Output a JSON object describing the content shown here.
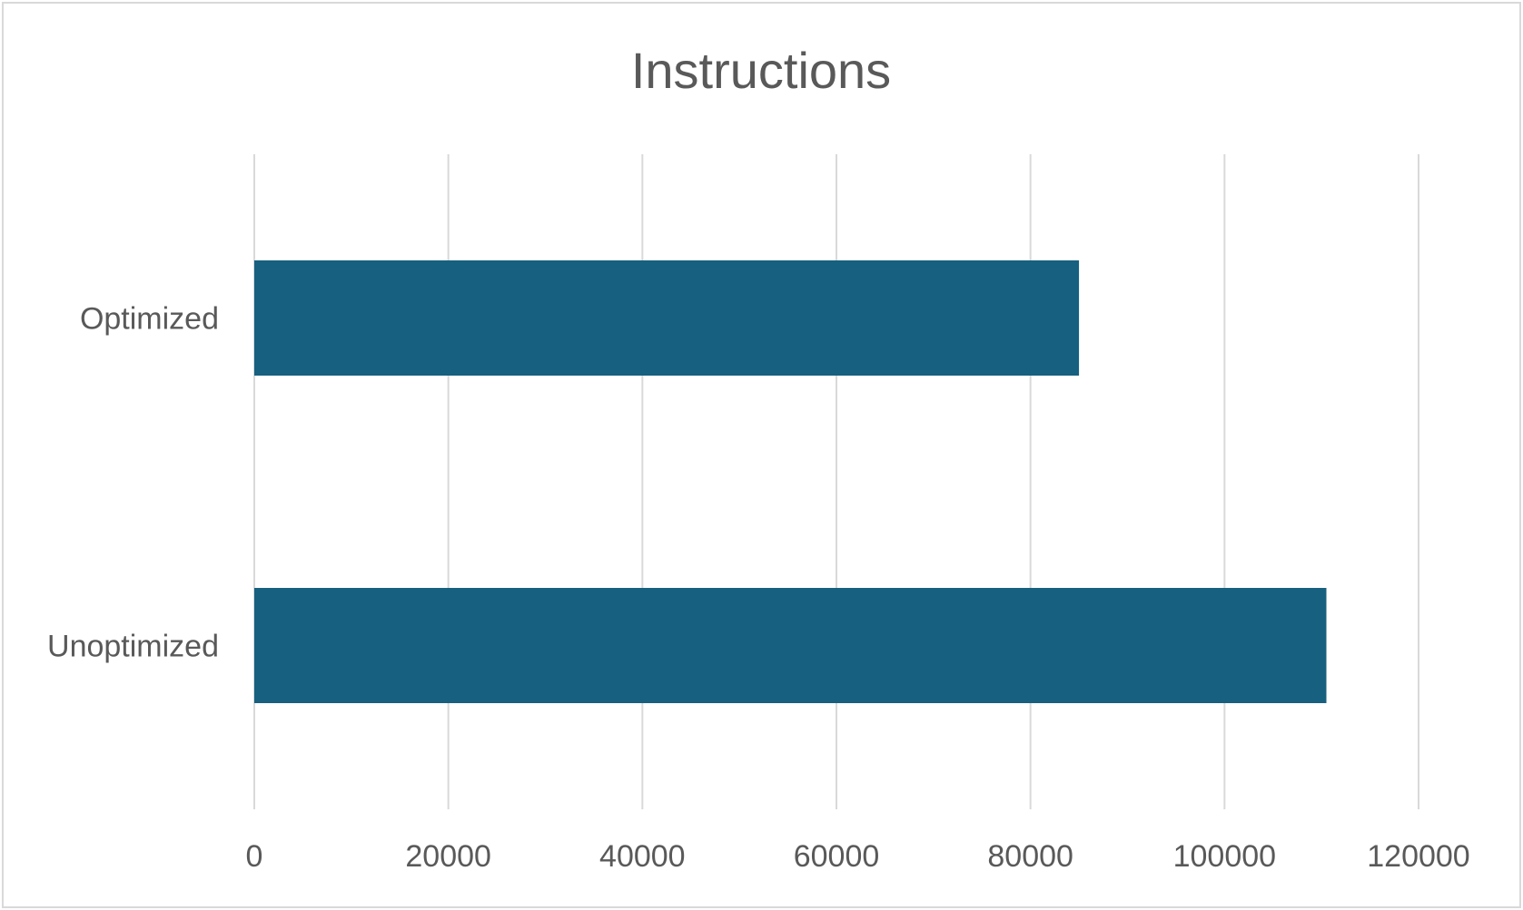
{
  "chart_data": {
    "type": "bar",
    "orientation": "horizontal",
    "title": "Instructions",
    "categories": [
      "Optimized",
      "Unoptimized"
    ],
    "values": [
      85000,
      110500
    ],
    "xlim": [
      0,
      120000
    ],
    "xticks": [
      "0",
      "20000",
      "40000",
      "60000",
      "80000",
      "100000",
      "120000"
    ],
    "grid": "vertical",
    "legend": "none",
    "bar_color": "#17607f",
    "grid_color": "#d9d9d9",
    "text_color": "#595959"
  }
}
